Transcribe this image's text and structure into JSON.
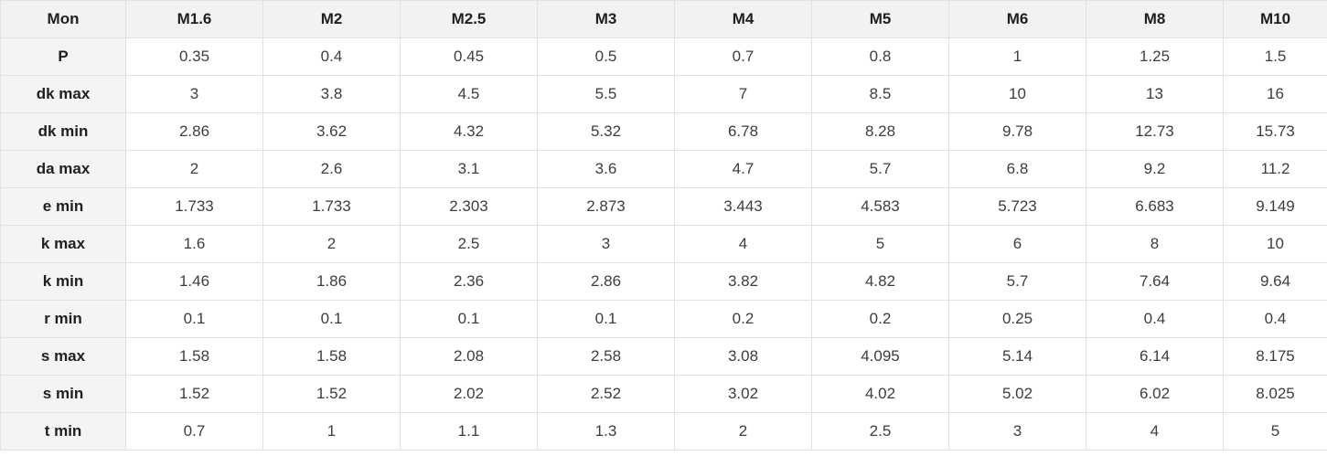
{
  "table": {
    "columns": [
      "Mon",
      "M1.6",
      "M2",
      "M2.5",
      "M3",
      "M4",
      "M5",
      "M6",
      "M8",
      "M10"
    ],
    "rows": [
      {
        "label": "P",
        "values": [
          "0.35",
          "0.4",
          "0.45",
          "0.5",
          "0.7",
          "0.8",
          "1",
          "1.25",
          "1.5"
        ]
      },
      {
        "label": "dk max",
        "values": [
          "3",
          "3.8",
          "4.5",
          "5.5",
          "7",
          "8.5",
          "10",
          "13",
          "16"
        ]
      },
      {
        "label": "dk min",
        "values": [
          "2.86",
          "3.62",
          "4.32",
          "5.32",
          "6.78",
          "8.28",
          "9.78",
          "12.73",
          "15.73"
        ]
      },
      {
        "label": "da max",
        "values": [
          "2",
          "2.6",
          "3.1",
          "3.6",
          "4.7",
          "5.7",
          "6.8",
          "9.2",
          "11.2"
        ]
      },
      {
        "label": "e min",
        "values": [
          "1.733",
          "1.733",
          "2.303",
          "2.873",
          "3.443",
          "4.583",
          "5.723",
          "6.683",
          "9.149"
        ]
      },
      {
        "label": "k max",
        "values": [
          "1.6",
          "2",
          "2.5",
          "3",
          "4",
          "5",
          "6",
          "8",
          "10"
        ]
      },
      {
        "label": "k min",
        "values": [
          "1.46",
          "1.86",
          "2.36",
          "2.86",
          "3.82",
          "4.82",
          "5.7",
          "7.64",
          "9.64"
        ]
      },
      {
        "label": "r min",
        "values": [
          "0.1",
          "0.1",
          "0.1",
          "0.1",
          "0.2",
          "0.2",
          "0.25",
          "0.4",
          "0.4"
        ]
      },
      {
        "label": "s max",
        "values": [
          "1.58",
          "1.58",
          "2.08",
          "2.58",
          "3.08",
          "4.095",
          "5.14",
          "6.14",
          "8.175"
        ]
      },
      {
        "label": "s min",
        "values": [
          "1.52",
          "1.52",
          "2.02",
          "2.52",
          "3.02",
          "4.02",
          "5.02",
          "6.02",
          "8.025"
        ]
      },
      {
        "label": "t min",
        "values": [
          "0.7",
          "1",
          "1.1",
          "1.3",
          "2",
          "2.5",
          "3",
          "4",
          "5"
        ]
      }
    ],
    "colors": {
      "header_bg": "#f2f2f2",
      "border": "#e1e1e1",
      "header_text": "#1f1f1f",
      "value_text": "#3d3d3d"
    }
  }
}
